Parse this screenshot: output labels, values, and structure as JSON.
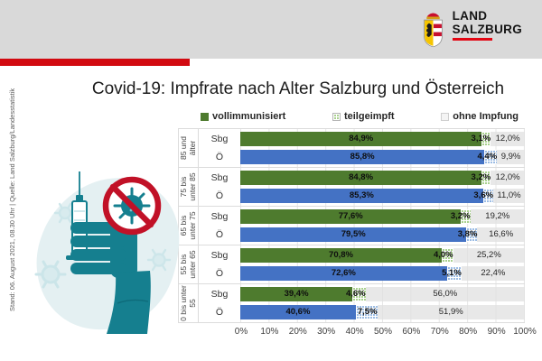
{
  "header": {
    "logo": {
      "line1": "LAND",
      "line2": "SALZBURG"
    }
  },
  "source_note": "Stand: 06. August 2021, 08.30 Uhr | Quelle: Land Salzburg/Landesstatistik",
  "title": "Covid-19: Impfrate nach Alter Salzburg und Österreich",
  "legend": [
    {
      "label": "vollimmunisiert",
      "swatch": "solid-green"
    },
    {
      "label": "teilgeimpft",
      "swatch": "hatched-green"
    },
    {
      "label": "ohne Impfung",
      "swatch": "light-gray"
    }
  ],
  "colors": {
    "header_bg": "#d9d9d9",
    "accent_red": "#d20a11",
    "salzburg_green": "#4e7b2e",
    "austria_blue": "#4472c4",
    "hatch_green": "#a9d18e",
    "hatch_blue": "#9dbde4",
    "remainder_gray": "#e9e9e9",
    "illustration_teal": "#157f8f",
    "prohibition_red": "#c11127"
  },
  "chart_data": {
    "type": "bar",
    "orientation": "horizontal",
    "stacked": true,
    "unit": "%",
    "xlim": [
      0,
      100
    ],
    "grid": true,
    "legend_position": "top",
    "series_names": [
      "vollimmunisiert",
      "teilgeimpft",
      "ohne Impfung"
    ],
    "x_ticks": [
      "0%",
      "10%",
      "20%",
      "30%",
      "40%",
      "50%",
      "60%",
      "70%",
      "80%",
      "90%",
      "100%"
    ],
    "groups": [
      {
        "age": "85 und älter",
        "rows": [
          {
            "region": "Sbg",
            "values": [
              84.9,
              3.1,
              12.0
            ],
            "labels": [
              "84,9%",
              "3,1%",
              "12,0%"
            ]
          },
          {
            "region": "Ö",
            "values": [
              85.8,
              4.4,
              9.9
            ],
            "labels": [
              "85,8%",
              "4,4%",
              "9,9%"
            ]
          }
        ]
      },
      {
        "age": "75 bis unter 85",
        "rows": [
          {
            "region": "Sbg",
            "values": [
              84.8,
              3.2,
              12.0
            ],
            "labels": [
              "84,8%",
              "3,2%",
              "12,0%"
            ]
          },
          {
            "region": "Ö",
            "values": [
              85.3,
              3.6,
              11.0
            ],
            "labels": [
              "85,3%",
              "3,6%",
              "11,0%"
            ]
          }
        ]
      },
      {
        "age": "65 bis unter 75",
        "rows": [
          {
            "region": "Sbg",
            "values": [
              77.6,
              3.2,
              19.2
            ],
            "labels": [
              "77,6%",
              "3,2%",
              "19,2%"
            ]
          },
          {
            "region": "Ö",
            "values": [
              79.5,
              3.8,
              16.6
            ],
            "labels": [
              "79,5%",
              "3,8%",
              "16,6%"
            ]
          }
        ]
      },
      {
        "age": "55 bis unter 65",
        "rows": [
          {
            "region": "Sbg",
            "values": [
              70.8,
              4.0,
              25.2
            ],
            "labels": [
              "70,8%",
              "4,0%",
              "25,2%"
            ]
          },
          {
            "region": "Ö",
            "values": [
              72.6,
              5.1,
              22.4
            ],
            "labels": [
              "72,6%",
              "5,1%",
              "22,4%"
            ]
          }
        ]
      },
      {
        "age": "0 bis unter 55",
        "rows": [
          {
            "region": "Sbg",
            "values": [
              39.4,
              4.6,
              56.0
            ],
            "labels": [
              "39,4%",
              "4,6%",
              "56,0%"
            ]
          },
          {
            "region": "Ö",
            "values": [
              40.6,
              7.5,
              51.9
            ],
            "labels": [
              "40,6%",
              "7,5%",
              "51,9%"
            ]
          }
        ]
      }
    ]
  }
}
